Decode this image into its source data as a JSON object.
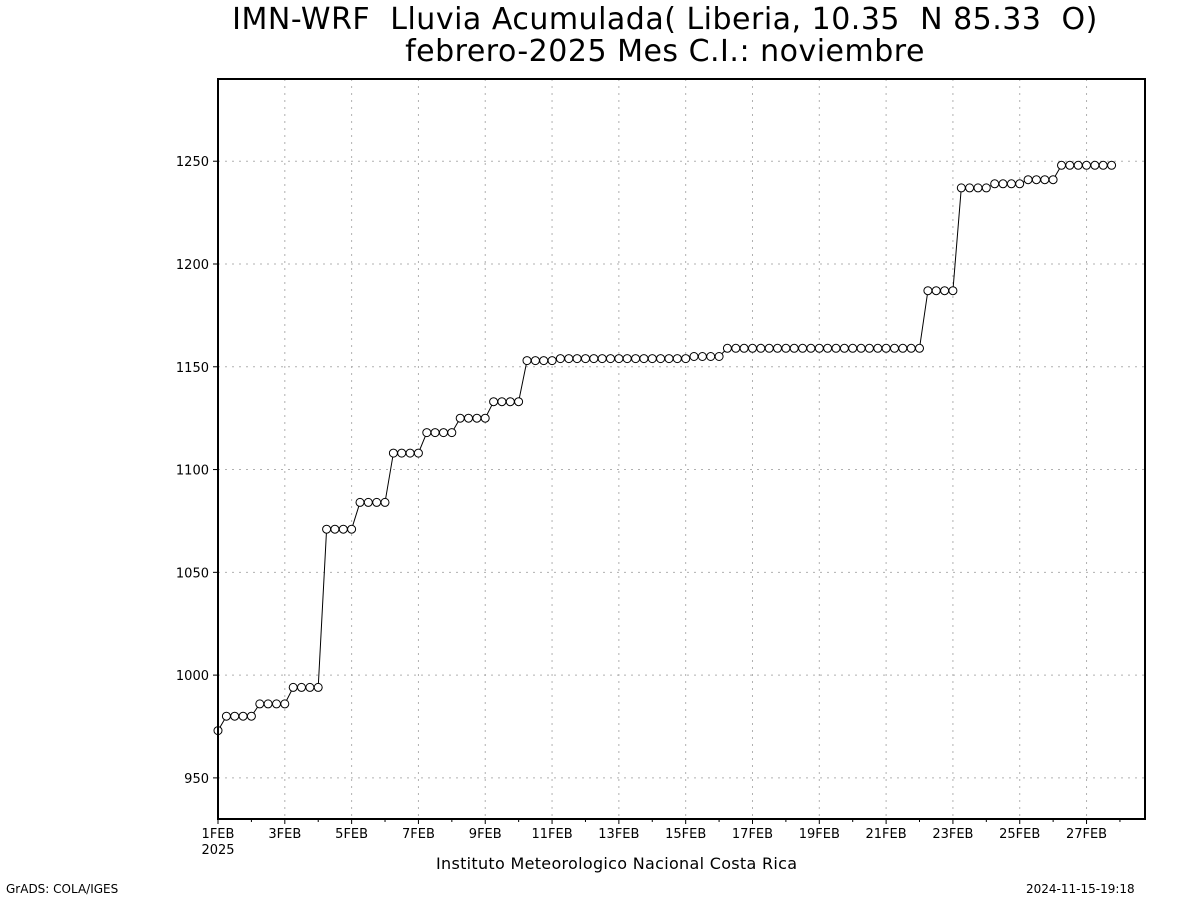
{
  "header": {
    "title_line1": "IMN-WRF  Lluvia Acumulada( Liberia, 10.35  N 85.33  O)",
    "title_line2": "febrero-2025 Mes C.I.: noviembre"
  },
  "footer": {
    "credit": "Instituto Meteorologico Nacional Costa Rica",
    "software": "GrADS: COLA/IGES",
    "timestamp": "2024-11-15-19:18"
  },
  "chart_data": {
    "type": "line",
    "title": "IMN-WRF  Lluvia Acumulada( Liberia, 10.35  N 85.33  O)",
    "subtitle": "febrero-2025 Mes C.I.: noviembre",
    "xlabel": "",
    "ylabel": "",
    "xlim": [
      "2025-02-01T00:00",
      "2025-02-28T18:00"
    ],
    "ylim": [
      930,
      1290
    ],
    "grid": true,
    "marker": "open-circle",
    "y_ticks": [
      950,
      1000,
      1050,
      1100,
      1150,
      1200,
      1250
    ],
    "x_tick_labels": [
      "1FEB",
      "3FEB",
      "5FEB",
      "7FEB",
      "9FEB",
      "11FEB",
      "13FEB",
      "15FEB",
      "17FEB",
      "19FEB",
      "21FEB",
      "23FEB",
      "25FEB",
      "27FEB"
    ],
    "x_year_label": "2025",
    "time_step": "6 hours",
    "start": "2025-02-01T00:00",
    "values": [
      973,
      980,
      980,
      980,
      980,
      986,
      986,
      986,
      986,
      994,
      994,
      994,
      994,
      1071,
      1071,
      1071,
      1071,
      1084,
      1084,
      1084,
      1084,
      1108,
      1108,
      1108,
      1108,
      1118,
      1118,
      1118,
      1118,
      1125,
      1125,
      1125,
      1125,
      1133,
      1133,
      1133,
      1133,
      1153,
      1153,
      1153,
      1153,
      1154,
      1154,
      1154,
      1154,
      1154,
      1154,
      1154,
      1154,
      1154,
      1154,
      1154,
      1154,
      1154,
      1154,
      1154,
      1154,
      1155,
      1155,
      1155,
      1155,
      1159,
      1159,
      1159,
      1159,
      1159,
      1159,
      1159,
      1159,
      1159,
      1159,
      1159,
      1159,
      1159,
      1159,
      1159,
      1159,
      1159,
      1159,
      1159,
      1159,
      1159,
      1159,
      1159,
      1159,
      1187,
      1187,
      1187,
      1187,
      1237,
      1237,
      1237,
      1237,
      1239,
      1239,
      1239,
      1239,
      1241,
      1241,
      1241,
      1241,
      1248,
      1248,
      1248,
      1248,
      1248,
      1248,
      1248
    ]
  },
  "colors": {
    "line": "#000000",
    "marker_fill": "#ffffff",
    "grid": "#b0b0b0",
    "background": "#ffffff"
  }
}
